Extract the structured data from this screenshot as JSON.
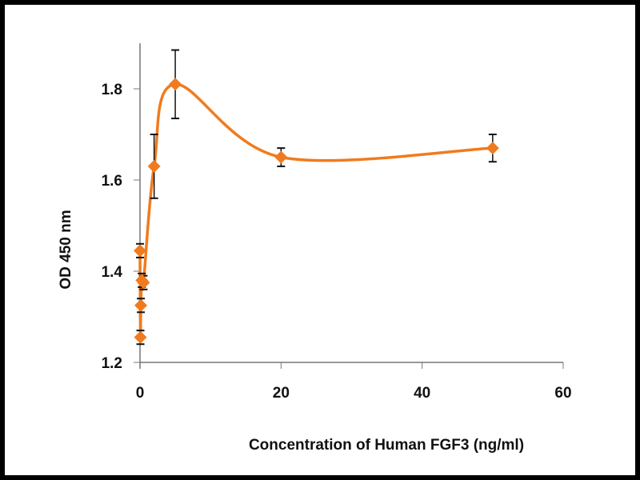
{
  "chart_data": {
    "type": "line",
    "title": "",
    "xlabel": "Concentration of Human FGF3 (ng/ml)",
    "ylabel": "OD 450 nm",
    "xlim": [
      0,
      60
    ],
    "ylim": [
      1.2,
      1.9
    ],
    "xticks": [
      "0",
      "20",
      "40",
      "60"
    ],
    "yticks": [
      "1.2",
      "1.4",
      "1.6",
      "1.8"
    ],
    "grid": false,
    "color": "#f07b1e",
    "series": [
      {
        "name": "FGF3",
        "x": [
          0,
          0.06,
          0.12,
          0.25,
          0.5,
          2,
          5,
          20,
          50
        ],
        "y": [
          1.445,
          1.255,
          1.325,
          1.38,
          1.375,
          1.63,
          1.81,
          1.65,
          1.67
        ],
        "err": [
          0.015,
          0.015,
          0.015,
          0.015,
          0.015,
          0.07,
          0.075,
          0.02,
          0.03
        ]
      }
    ]
  }
}
